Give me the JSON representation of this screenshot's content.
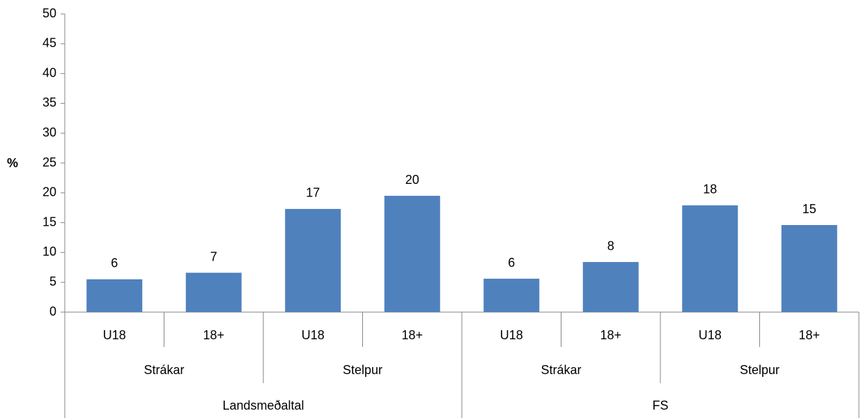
{
  "chart_data": {
    "type": "bar",
    "y_label": "%",
    "categories": [
      "U18",
      "18+",
      "U18",
      "18+",
      "U18",
      "18+",
      "U18",
      "18+"
    ],
    "groups": [
      "Strákar",
      "Stelpur",
      "Strákar",
      "Stelpur"
    ],
    "supergroups": [
      "Landsmeðaltal",
      "FS"
    ],
    "values": [
      5.5,
      6.6,
      17.3,
      19.5,
      5.6,
      8.4,
      17.9,
      14.6
    ],
    "value_labels": [
      "6",
      "7",
      "17",
      "20",
      "6",
      "8",
      "18",
      "15"
    ],
    "color": "#4f81bd",
    "ylim": [
      0,
      50
    ],
    "yticks": [
      0,
      5,
      10,
      15,
      20,
      25,
      30,
      35,
      40,
      45,
      50
    ],
    "grid": false
  }
}
